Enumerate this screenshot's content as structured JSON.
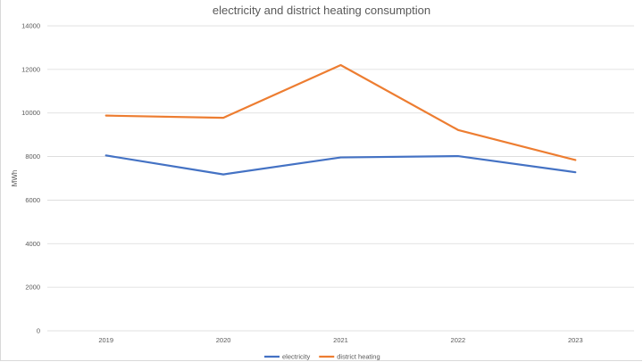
{
  "chart_data": {
    "type": "line",
    "title": "electricity and district heating consumption",
    "xlabel": "",
    "ylabel": "MWh",
    "categories": [
      "2019",
      "2020",
      "2021",
      "2022",
      "2023"
    ],
    "ylim": [
      0,
      14000
    ],
    "yticks": [
      "0",
      "2000",
      "4000",
      "6000",
      "8000",
      "10000",
      "12000",
      "14000"
    ],
    "grid": true,
    "legend_position": "bottom",
    "series": [
      {
        "name": "electricity",
        "color": "#4472c4",
        "values": [
          8050,
          7180,
          7960,
          8020,
          7280
        ]
      },
      {
        "name": "district heating",
        "color": "#ed7d31",
        "values": [
          9880,
          9780,
          12200,
          9220,
          7840
        ]
      }
    ]
  }
}
